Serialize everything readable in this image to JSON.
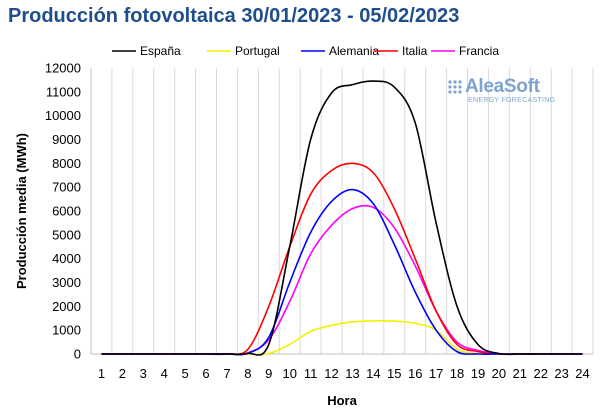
{
  "title": "Producción fotovoltaica 30/01/2023 - 05/02/2023",
  "logo": {
    "brand": "AleaSoft",
    "tagline": "ENERGY FORECASTING"
  },
  "chart_data": {
    "type": "line",
    "xlabel": "Hora",
    "ylabel": "Producción media (MWh)",
    "x": [
      1,
      2,
      3,
      4,
      5,
      6,
      7,
      8,
      9,
      10,
      11,
      12,
      13,
      14,
      15,
      16,
      17,
      18,
      19,
      20,
      21,
      22,
      23,
      24
    ],
    "ylim": [
      0,
      12000
    ],
    "yticks": [
      0,
      1000,
      2000,
      3000,
      4000,
      5000,
      6000,
      7000,
      8000,
      9000,
      10000,
      11000,
      12000
    ],
    "ytick_labels": [
      "0",
      "1000",
      "2000",
      "3000",
      "4000",
      "5000",
      "6000",
      "7000",
      "8000",
      "9000",
      "10000",
      "11000",
      "12000"
    ],
    "grid": "vertical",
    "legend_position": "top",
    "series": [
      {
        "name": "España",
        "color": "#000000",
        "values": [
          0,
          0,
          0,
          0,
          0,
          0,
          0,
          20,
          400,
          4500,
          9000,
          10950,
          11300,
          11450,
          11200,
          9700,
          5500,
          2000,
          400,
          20,
          0,
          0,
          0,
          0
        ]
      },
      {
        "name": "Portugal",
        "color": "#f2f200",
        "values": [
          0,
          0,
          0,
          0,
          0,
          0,
          0,
          0,
          20,
          400,
          950,
          1200,
          1350,
          1390,
          1380,
          1290,
          1000,
          200,
          20,
          0,
          0,
          0,
          0,
          0
        ]
      },
      {
        "name": "Alemania",
        "color": "#0000ff",
        "values": [
          0,
          0,
          0,
          0,
          0,
          0,
          0,
          30,
          700,
          3000,
          5100,
          6400,
          6900,
          6300,
          4600,
          2600,
          1000,
          100,
          0,
          0,
          0,
          0,
          0,
          0
        ]
      },
      {
        "name": "Italia",
        "color": "#ff0000",
        "values": [
          0,
          0,
          0,
          0,
          0,
          0,
          0,
          200,
          2000,
          4500,
          6700,
          7700,
          8000,
          7600,
          6100,
          4000,
          1800,
          400,
          100,
          0,
          0,
          0,
          0,
          0
        ]
      },
      {
        "name": "Francia",
        "color": "#ff00ff",
        "values": [
          0,
          0,
          0,
          0,
          0,
          0,
          0,
          50,
          600,
          2200,
          4200,
          5400,
          6100,
          6150,
          5300,
          3700,
          1800,
          500,
          150,
          10,
          0,
          0,
          0,
          0
        ]
      }
    ]
  }
}
